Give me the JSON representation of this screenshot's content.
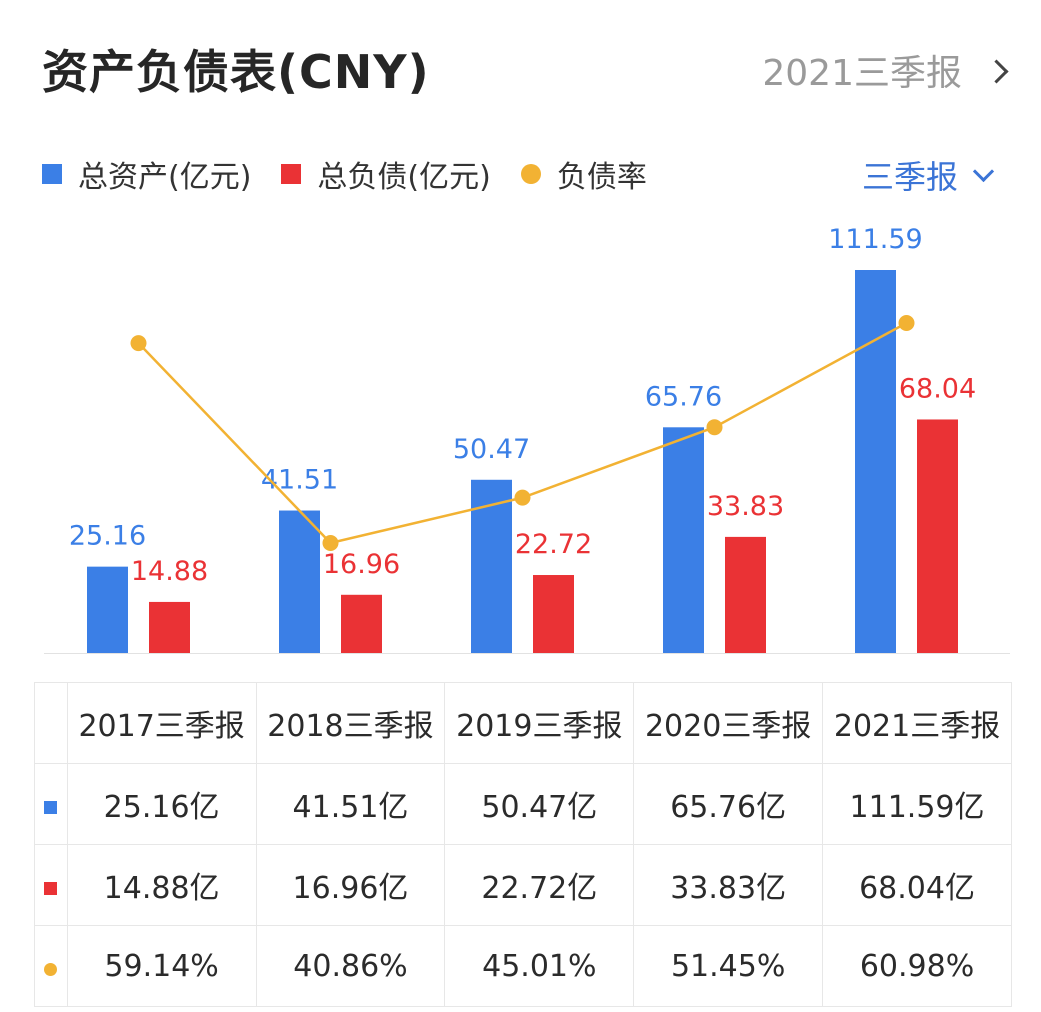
{
  "header": {
    "title": "资产负债表(CNY)",
    "period_link": "2021三季报"
  },
  "legend": {
    "assets": "总资产(亿元)",
    "liabilities": "总负债(亿元)",
    "ratio": "负债率"
  },
  "period_selector": {
    "label": "三季报"
  },
  "colors": {
    "assets": "#3b7fe6",
    "liabilities": "#ea3235",
    "ratio": "#f2b233"
  },
  "chart_data": {
    "type": "bar",
    "categories": [
      "2017三季报",
      "2018三季报",
      "2019三季报",
      "2020三季报",
      "2021三季报"
    ],
    "series": [
      {
        "name": "总资产(亿元)",
        "values": [
          25.16,
          41.51,
          50.47,
          65.76,
          111.59
        ]
      },
      {
        "name": "总负债(亿元)",
        "values": [
          14.88,
          16.96,
          22.72,
          33.83,
          68.04
        ]
      },
      {
        "name": "负债率",
        "type": "line",
        "values": [
          59.14,
          40.86,
          45.01,
          51.45,
          60.98
        ],
        "unit": "%"
      }
    ],
    "ylim": [
      0,
      111.59
    ]
  },
  "table": {
    "headers": [
      "2017三季报",
      "2018三季报",
      "2019三季报",
      "2020三季报",
      "2021三季报"
    ],
    "rows": [
      {
        "key": "assets",
        "cells": [
          "25.16亿",
          "41.51亿",
          "50.47亿",
          "65.76亿",
          "111.59亿"
        ]
      },
      {
        "key": "liabilities",
        "cells": [
          "14.88亿",
          "16.96亿",
          "22.72亿",
          "33.83亿",
          "68.04亿"
        ]
      },
      {
        "key": "ratio",
        "cells": [
          "59.14%",
          "40.86%",
          "45.01%",
          "51.45%",
          "60.98%"
        ]
      }
    ]
  }
}
